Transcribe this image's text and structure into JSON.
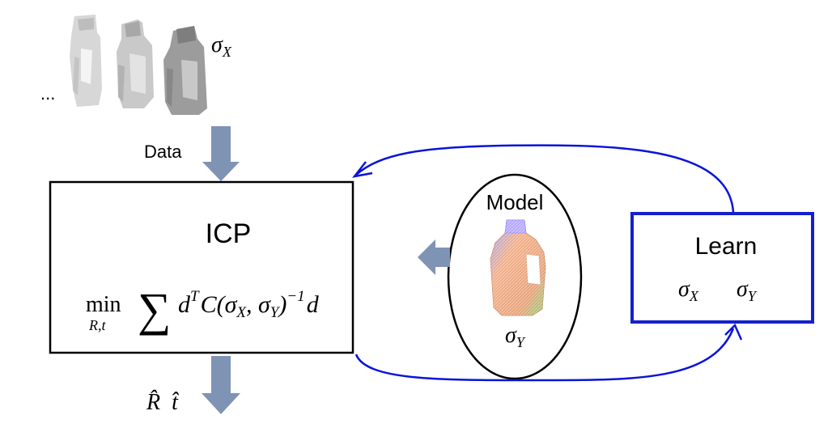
{
  "data_label": "Data",
  "ellipsis": "...",
  "sigma_x_top": "σ",
  "sigma_x_top_sub": "X",
  "icp": {
    "title": "ICP",
    "min_word": "min",
    "min_sub": "R,t",
    "sum_symbol": "∑",
    "d1": "d",
    "sup_T": "T",
    "C": "C(",
    "sigma1": "σ",
    "sub1": "X",
    "comma": ", ",
    "sigma2": "σ",
    "sub2": "Y",
    "close": ")",
    "sup_inv": "−1",
    "d2": "d"
  },
  "model": {
    "label": "Model",
    "sigma": "σ",
    "sigma_sub": "Y"
  },
  "learn": {
    "label": "Learn",
    "sigma_a": "σ",
    "sigma_a_sub": "X",
    "sigma_b": "σ",
    "sigma_b_sub": "Y"
  },
  "output": {
    "r_hat": "R̂",
    "t_hat": "t̂"
  },
  "colors": {
    "arrow_fill": "#7f93b5",
    "feedback_line": "#0a14d8",
    "learn_border": "#1420cc",
    "box_border": "#000000"
  }
}
